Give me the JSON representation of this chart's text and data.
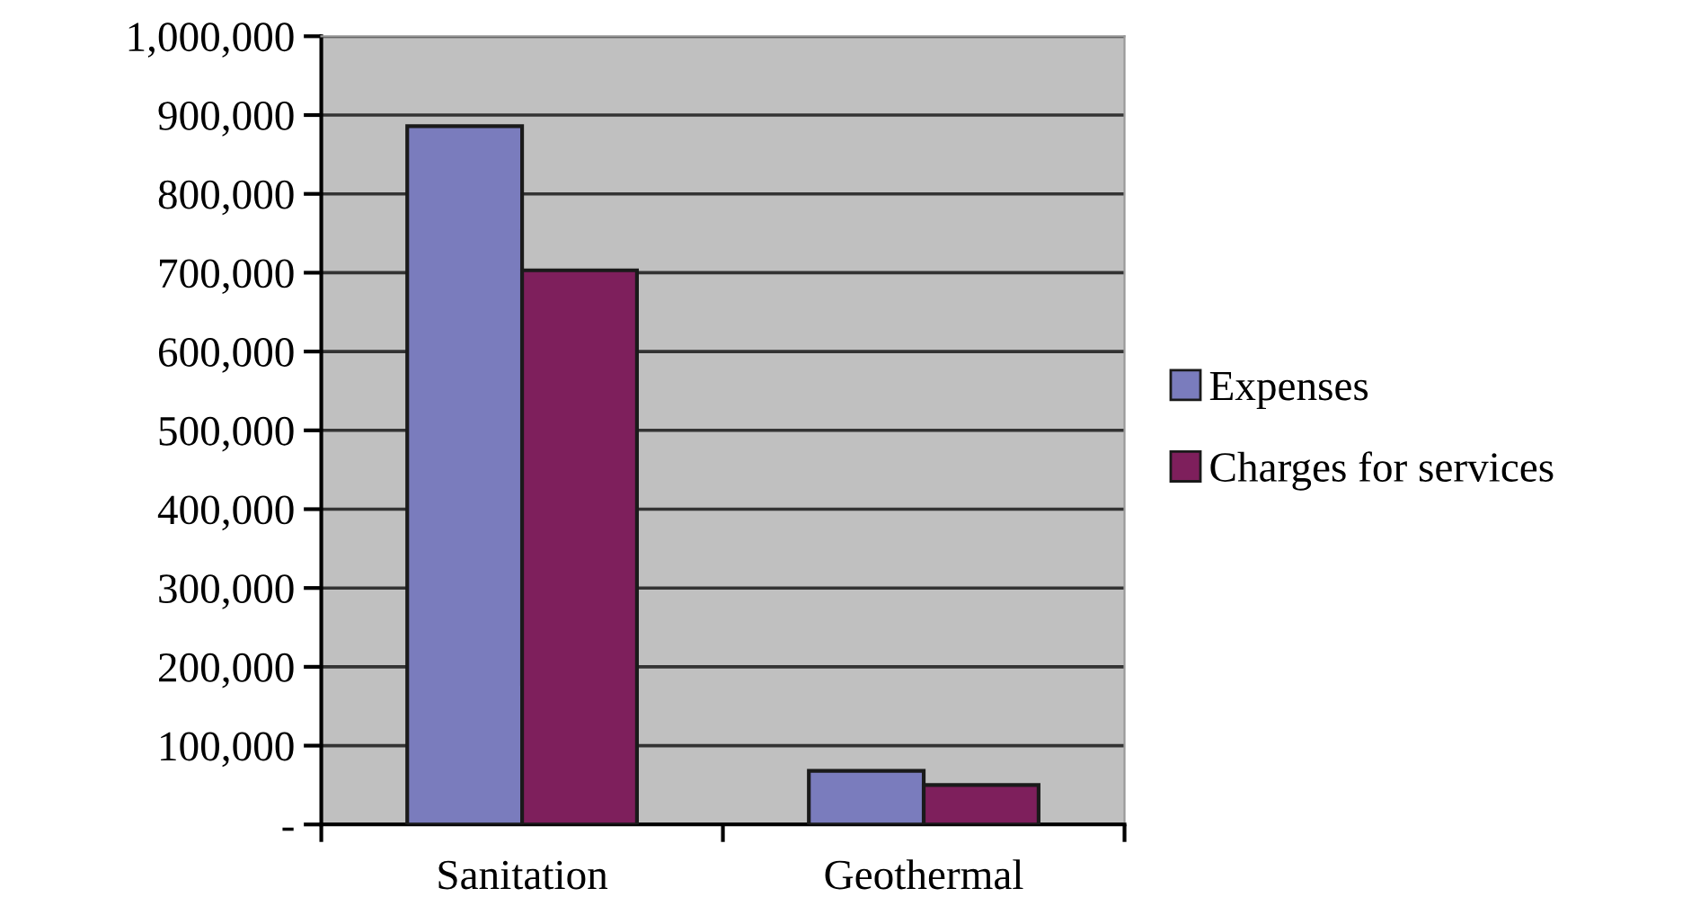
{
  "chart_data": {
    "type": "bar",
    "categories": [
      "Sanitation",
      "Geothermal"
    ],
    "series": [
      {
        "name": "Expenses",
        "color": "#7a7cbd",
        "values": [
          886000,
          68000
        ]
      },
      {
        "name": "Charges for services",
        "color": "#7e1f5c",
        "values": [
          703000,
          50000
        ]
      }
    ],
    "ylim": [
      0,
      1000000
    ],
    "yticks": [
      {
        "value": 0,
        "label": "-"
      },
      {
        "value": 100000,
        "label": "100,000"
      },
      {
        "value": 200000,
        "label": "200,000"
      },
      {
        "value": 300000,
        "label": "300,000"
      },
      {
        "value": 400000,
        "label": "400,000"
      },
      {
        "value": 500000,
        "label": "500,000"
      },
      {
        "value": 600000,
        "label": "600,000"
      },
      {
        "value": 700000,
        "label": "700,000"
      },
      {
        "value": 800000,
        "label": "800,000"
      },
      {
        "value": 900000,
        "label": "900,000"
      },
      {
        "value": 1000000,
        "label": "1,000,000"
      }
    ],
    "grid": "y",
    "legend": "right"
  }
}
